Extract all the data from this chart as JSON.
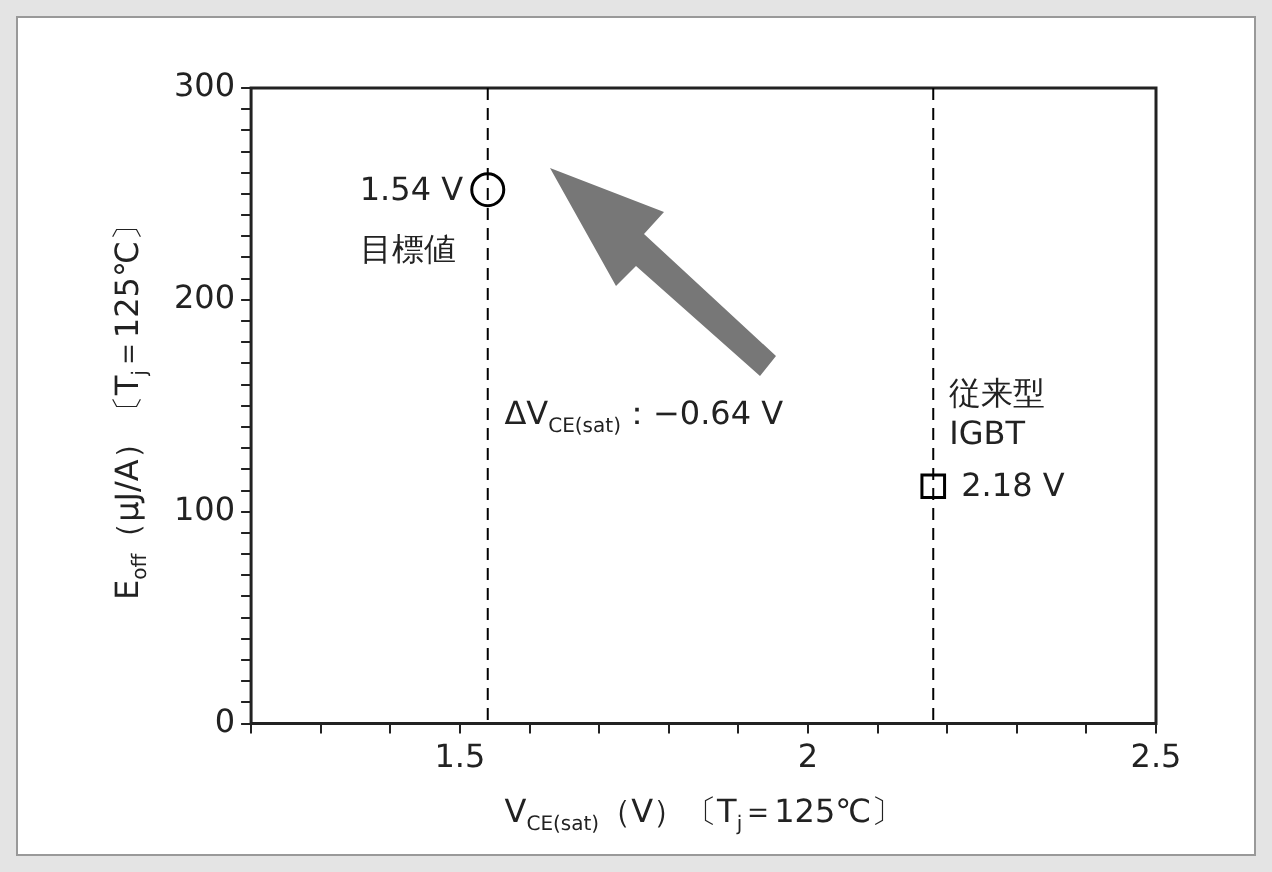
{
  "chart_data": {
    "type": "scatter",
    "xlabel": "V$_{CE(sat)}$（V）〔T$_{j}$＝125℃〕",
    "ylabel": "E$_{off}$（μJ/A）〔T$_{j}$＝125℃〕",
    "series": [
      {
        "x": [
          1.54
        ],
        "values": [
          252
        ],
        "marker": "circle",
        "color": "#000000"
      },
      {
        "x": [
          2.18
        ],
        "values": [
          112
        ],
        "marker": "square",
        "color": "#000000"
      }
    ],
    "xlim": [
      1.2,
      2.5
    ],
    "xticks": [
      {
        "value": 1.2,
        "label": null
      },
      {
        "value": 1.3,
        "label": null
      },
      {
        "value": 1.4,
        "label": null
      },
      1.5,
      {
        "value": 1.6,
        "label": null
      },
      {
        "value": 1.7,
        "label": null
      },
      {
        "value": 1.8,
        "label": null
      },
      {
        "value": 1.9,
        "label": null
      },
      2,
      {
        "value": 2.1,
        "label": null
      },
      {
        "value": 2.2,
        "label": null
      },
      {
        "value": 2.3,
        "label": null
      },
      {
        "value": 2.4,
        "label": null
      },
      2.5
    ],
    "ylim": [
      0,
      300
    ],
    "yticks": [
      0,
      {
        "value": 10,
        "label": null
      },
      {
        "value": 20,
        "label": null
      },
      {
        "value": 30,
        "label": null
      },
      {
        "value": 40,
        "label": null
      },
      {
        "value": 50,
        "label": null
      },
      {
        "value": 60,
        "label": null
      },
      {
        "value": 70,
        "label": null
      },
      {
        "value": 80,
        "label": null
      },
      {
        "value": 90,
        "label": null
      },
      100,
      {
        "value": 110,
        "label": null
      },
      {
        "value": 120,
        "label": null
      },
      {
        "value": 130,
        "label": null
      },
      {
        "value": 140,
        "label": null
      },
      {
        "value": 150,
        "label": null
      },
      {
        "value": 160,
        "label": null
      },
      {
        "value": 170,
        "label": null
      },
      {
        "value": 180,
        "label": null
      },
      {
        "value": 190,
        "label": null
      },
      200,
      {
        "value": 210,
        "label": null
      },
      {
        "value": 220,
        "label": null
      },
      {
        "value": 230,
        "label": null
      },
      {
        "value": 240,
        "label": null
      },
      {
        "value": 250,
        "label": null
      },
      {
        "value": 260,
        "label": null
      },
      {
        "value": 270,
        "label": null
      },
      {
        "value": 280,
        "label": null
      },
      {
        "value": 290,
        "label": null
      },
      300
    ],
    "ref_lines": [
      {
        "axis": "x",
        "value": 1.54,
        "line_style": "dashed",
        "color": "#000000"
      },
      {
        "axis": "x",
        "value": 2.18,
        "line_style": "dashed",
        "color": "#000000"
      }
    ],
    "annotations": [
      "1.54 V",
      "目標値",
      "ΔV$_{CE(sat)}$：−0.64 V",
      "従来型\nIGBT",
      "2.18 V"
    ],
    "grid": false,
    "legend": false
  }
}
